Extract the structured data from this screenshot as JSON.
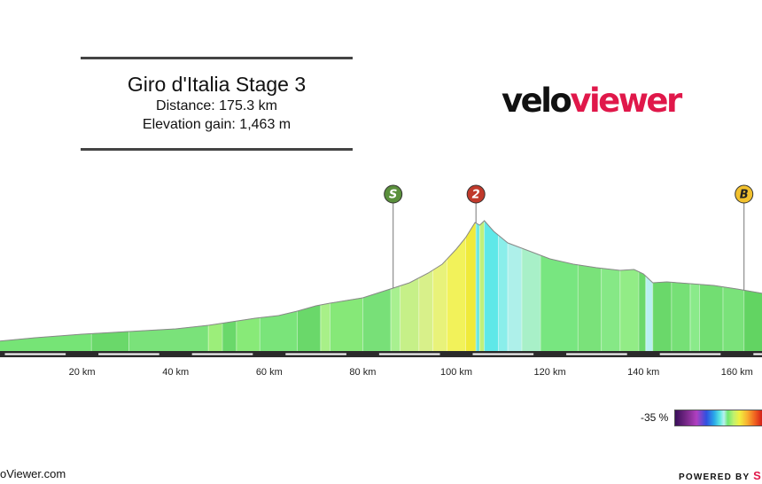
{
  "header": {
    "title": "Giro d'Italia Stage 3",
    "distance": "Distance: 175.3 km",
    "elevation_gain": "Elevation gain: 1,463 m"
  },
  "logo": {
    "part1": "velo",
    "part2": "viewer"
  },
  "footer": {
    "left": "oViewer.com",
    "right_text": "POWERED BY",
    "right_mark": "S"
  },
  "legend": {
    "label": "-35 %"
  },
  "markers": [
    {
      "symbol": "S",
      "km": 86.5,
      "color": "#5a8f3c"
    },
    {
      "symbol": "2",
      "km": 104.2,
      "color": "#c0392b"
    },
    {
      "symbol": "B",
      "km": 161.5,
      "color": "#f2c12e"
    }
  ],
  "chart_data": {
    "type": "area",
    "xlabel": "",
    "ylabel": "",
    "x_ticks": [
      20,
      40,
      60,
      80,
      100,
      120,
      140,
      160
    ],
    "x_tick_labels": [
      "20 km",
      "40 km",
      "60 km",
      "80 km",
      "100 km",
      "120 km",
      "140 km",
      "160 km"
    ],
    "x_range": [
      0,
      165.5
    ],
    "profile_points": [
      [
        0,
        10
      ],
      [
        10,
        15
      ],
      [
        20,
        19
      ],
      [
        30,
        22
      ],
      [
        40,
        25
      ],
      [
        47,
        29
      ],
      [
        52,
        33
      ],
      [
        57,
        37
      ],
      [
        62,
        40
      ],
      [
        66,
        45
      ],
      [
        70,
        51
      ],
      [
        73,
        54
      ],
      [
        80,
        60
      ],
      [
        86.5,
        71
      ],
      [
        90,
        77
      ],
      [
        94,
        88
      ],
      [
        97,
        98
      ],
      [
        100,
        115
      ],
      [
        102,
        128
      ],
      [
        104,
        145
      ],
      [
        105,
        142
      ],
      [
        106,
        147
      ],
      [
        108,
        135
      ],
      [
        111,
        122
      ],
      [
        114,
        116
      ],
      [
        120,
        104
      ],
      [
        125,
        98
      ],
      [
        130,
        94
      ],
      [
        135,
        91
      ],
      [
        138,
        92
      ],
      [
        140,
        87
      ],
      [
        142,
        77
      ],
      [
        145,
        78
      ],
      [
        150,
        76
      ],
      [
        155,
        74
      ],
      [
        160,
        70
      ],
      [
        165.5,
        65
      ]
    ],
    "segments": [
      {
        "from": 0,
        "to": 22,
        "color": "#76e476"
      },
      {
        "from": 22,
        "to": 30,
        "color": "#6ad86a"
      },
      {
        "from": 30,
        "to": 47,
        "color": "#7ae27a"
      },
      {
        "from": 47,
        "to": 50,
        "color": "#9cee7a"
      },
      {
        "from": 50,
        "to": 53,
        "color": "#6ad86a"
      },
      {
        "from": 53,
        "to": 58,
        "color": "#88ea78"
      },
      {
        "from": 58,
        "to": 66,
        "color": "#7ae47a"
      },
      {
        "from": 66,
        "to": 71,
        "color": "#6ad86a"
      },
      {
        "from": 71,
        "to": 73,
        "color": "#a8f088"
      },
      {
        "from": 73,
        "to": 80,
        "color": "#86e878"
      },
      {
        "from": 80,
        "to": 86,
        "color": "#78e078"
      },
      {
        "from": 86,
        "to": 88,
        "color": "#a8f090"
      },
      {
        "from": 88,
        "to": 92,
        "color": "#c6f088"
      },
      {
        "from": 92,
        "to": 95,
        "color": "#d8f08a"
      },
      {
        "from": 95,
        "to": 98,
        "color": "#e8f27a"
      },
      {
        "from": 98,
        "to": 102,
        "color": "#f2f25a"
      },
      {
        "from": 102,
        "to": 104.2,
        "color": "#f0ea3a"
      },
      {
        "from": 104.2,
        "to": 105,
        "color": "#6ee8e0"
      },
      {
        "from": 105,
        "to": 106,
        "color": "#c0f07a"
      },
      {
        "from": 106,
        "to": 109,
        "color": "#5ee8e8"
      },
      {
        "from": 109,
        "to": 111,
        "color": "#8aeeea"
      },
      {
        "from": 111,
        "to": 114,
        "color": "#aef0ea"
      },
      {
        "from": 114,
        "to": 118,
        "color": "#a8f0c8"
      },
      {
        "from": 118,
        "to": 126,
        "color": "#78e680"
      },
      {
        "from": 126,
        "to": 131,
        "color": "#7ae27a"
      },
      {
        "from": 131,
        "to": 135,
        "color": "#86e886"
      },
      {
        "from": 135,
        "to": 139,
        "color": "#92ec86"
      },
      {
        "from": 139,
        "to": 140.5,
        "color": "#6ad86a"
      },
      {
        "from": 140.5,
        "to": 142,
        "color": "#b8f0f0"
      },
      {
        "from": 142,
        "to": 146,
        "color": "#6ad86a"
      },
      {
        "from": 146,
        "to": 150,
        "color": "#76e076"
      },
      {
        "from": 150,
        "to": 152,
        "color": "#8aea8a"
      },
      {
        "from": 152,
        "to": 157,
        "color": "#72de72"
      },
      {
        "from": 157,
        "to": 161.5,
        "color": "#7ae27a"
      },
      {
        "from": 161.5,
        "to": 165.5,
        "color": "#62d462"
      }
    ]
  }
}
